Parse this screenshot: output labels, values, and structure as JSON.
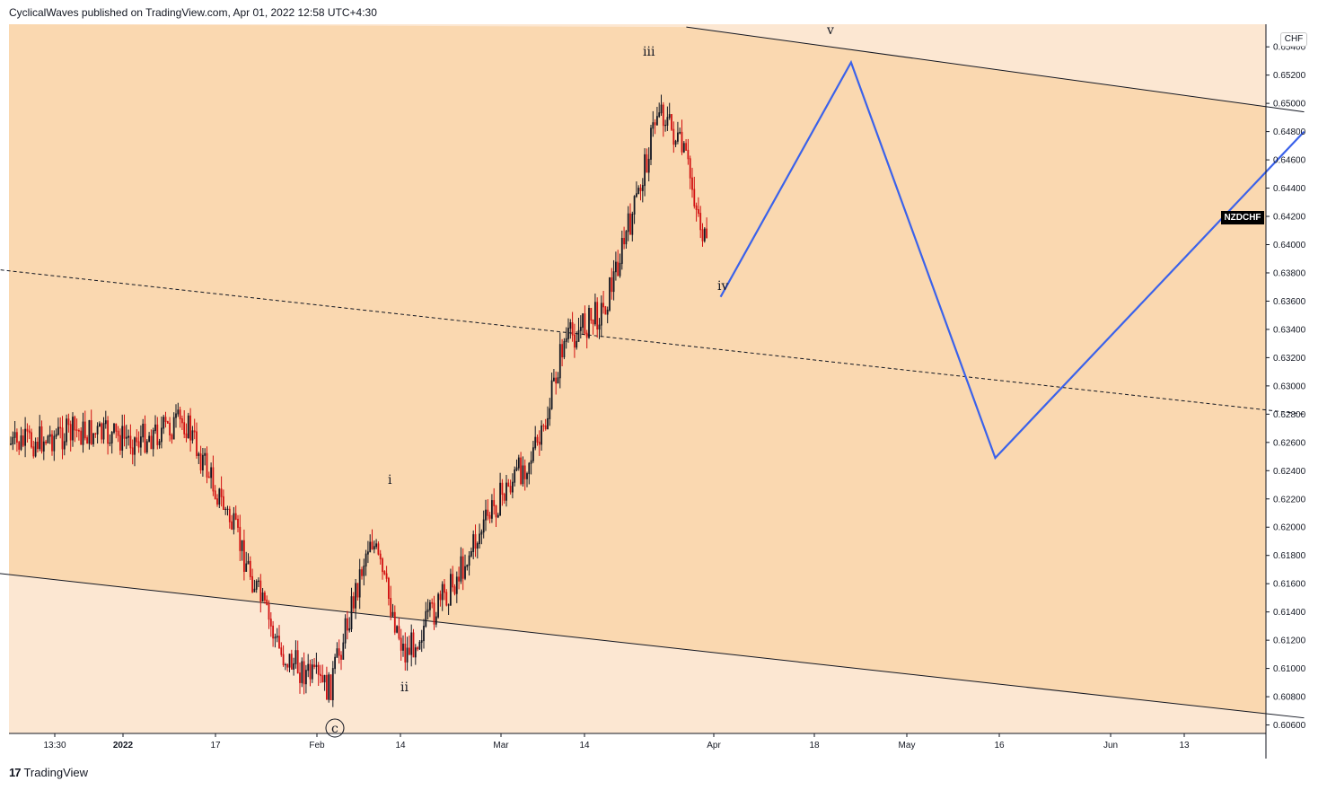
{
  "header": {
    "attribution": "CyclicalWaves published on TradingView.com, Apr 01, 2022 12:58 UTC+4:30"
  },
  "footer": {
    "brand": "TradingView",
    "logo_glyph": "17"
  },
  "symbol": {
    "name": "NZDCHF",
    "currency": "CHF"
  },
  "colors": {
    "channel_inner": "#fad8b0",
    "background": "#fce7d2",
    "projection": "#3b62ea",
    "candle_up": "#131722",
    "candle_down": "#d11010"
  },
  "chart_data": {
    "type": "candlestick",
    "price_axis": {
      "ticks": [
        "0.65400",
        "0.65200",
        "0.65000",
        "0.64800",
        "0.64600",
        "0.64400",
        "0.64200",
        "0.64000",
        "0.63800",
        "0.63600",
        "0.63400",
        "0.63200",
        "0.63000",
        "0.62800",
        "0.62600",
        "0.62400",
        "0.62200",
        "0.62000",
        "0.61800",
        "0.61600",
        "0.61400",
        "0.61200",
        "0.61000",
        "0.60800",
        "0.60600"
      ],
      "range": [
        0.6054,
        0.6556
      ]
    },
    "time_axis": {
      "ticks": [
        "13:30",
        "2022",
        "17",
        "Feb",
        "14",
        "Mar",
        "14",
        "Apr",
        "18",
        "May",
        "16",
        "Jun",
        "13"
      ],
      "bold": [
        "2022"
      ]
    },
    "wave_labels": [
      "i",
      "ii",
      "iii",
      "iv",
      "v",
      "c"
    ],
    "path_points": [
      {
        "date": "2021-12-10",
        "price": 0.6281
      },
      {
        "date": "2021-12-20",
        "price": 0.6258
      },
      {
        "date": "2021-12-29",
        "price": 0.6268
      },
      {
        "date": "2022-01-07",
        "price": 0.6262
      },
      {
        "date": "2022-01-14",
        "price": 0.6275
      },
      {
        "date": "2022-01-21",
        "price": 0.62
      },
      {
        "date": "2022-01-28",
        "price": 0.611
      },
      {
        "date": "2022-02-04",
        "price": 0.6085
      },
      {
        "date": "2022-02-10",
        "price": 0.6195
      },
      {
        "date": "2022-02-15",
        "price": 0.611
      },
      {
        "date": "2022-02-22",
        "price": 0.616
      },
      {
        "date": "2022-02-28",
        "price": 0.6215
      },
      {
        "date": "2022-03-07",
        "price": 0.6262
      },
      {
        "date": "2022-03-10",
        "price": 0.633
      },
      {
        "date": "2022-03-16",
        "price": 0.6355
      },
      {
        "date": "2022-03-21",
        "price": 0.6435
      },
      {
        "date": "2022-03-24",
        "price": 0.65
      },
      {
        "date": "2022-03-28",
        "price": 0.646
      },
      {
        "date": "2022-03-31",
        "price": 0.6395
      }
    ],
    "projection": [
      {
        "date": "2022-04-02",
        "price": 0.6363
      },
      {
        "date": "2022-04-21",
        "price": 0.6529
      },
      {
        "date": "2022-05-12",
        "price": 0.6249
      },
      {
        "date": "2022-06-26",
        "price": 0.648
      }
    ],
    "channel": {
      "upper": [
        {
          "date": "2022-03-28",
          "price": 0.6554
        },
        {
          "date": "2022-06-26",
          "price": 0.6494
        }
      ],
      "lower": [
        {
          "date": "2021-12-09",
          "price": 0.6172
        },
        {
          "date": "2022-06-26",
          "price": 0.6065
        }
      ],
      "mid": [
        {
          "date": "2021-12-09",
          "price": 0.6387
        },
        {
          "date": "2022-06-26",
          "price": 0.628
        }
      ]
    }
  }
}
